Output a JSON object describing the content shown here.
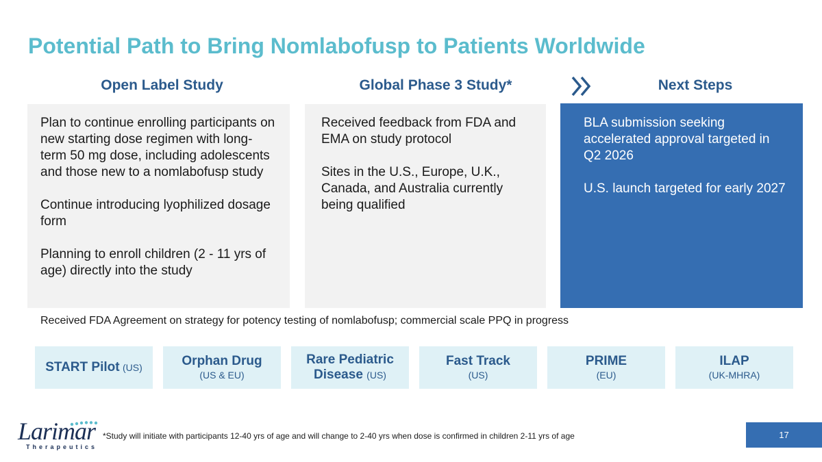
{
  "title": "Potential Path to Bring Nomlabofusp to Patients Worldwide",
  "columns": {
    "open_label": {
      "heading": "Open Label Study",
      "paragraphs": [
        "Plan to continue enrolling participants on new starting dose regimen with long-term 50 mg dose, including adolescents and those new to a nomlabofusp study",
        "Continue introducing lyophilized dosage form",
        "Planning to enroll children (2 - 11 yrs of age) directly into the study"
      ]
    },
    "phase3": {
      "heading": "Global Phase 3 Study*",
      "paragraphs": [
        "Received feedback from FDA and EMA on study protocol",
        "Sites in the U.S., Europe, U.K., Canada, and Australia currently being qualified"
      ]
    },
    "next_steps": {
      "heading": "Next Steps",
      "paragraphs": [
        "BLA submission seeking accelerated approval targeted in Q2 2026",
        "U.S. launch targeted for early 2027"
      ]
    }
  },
  "agreement_note": "Received FDA Agreement on strategy for potency testing of nomlabofusp; commercial scale PPQ in progress",
  "designations": [
    {
      "name": "START Pilot",
      "region": "(US)"
    },
    {
      "name": "Orphan Drug",
      "region": "(US & EU)"
    },
    {
      "name": "Rare Pediatric",
      "name2": "Disease",
      "region": "(US)"
    },
    {
      "name": "Fast Track",
      "region": "(US)"
    },
    {
      "name": "PRIME",
      "region": "(EU)"
    },
    {
      "name": "ILAP",
      "region": "(UK-MHRA)"
    }
  ],
  "logo": {
    "wordmark": "Larimar",
    "tagline": "Therapeutics"
  },
  "footnote": "*Study will initiate with participants 12-40 yrs of age and will change to 2-40 yrs when dose is confirmed in children 2-11 yrs of age",
  "page_number": "17",
  "colors": {
    "title": "#5bbccd",
    "heading": "#2b5a8c",
    "accent_blue": "#356eb2",
    "badge_bg": "#dff1f6",
    "panel_bg": "#f2f2f2"
  }
}
